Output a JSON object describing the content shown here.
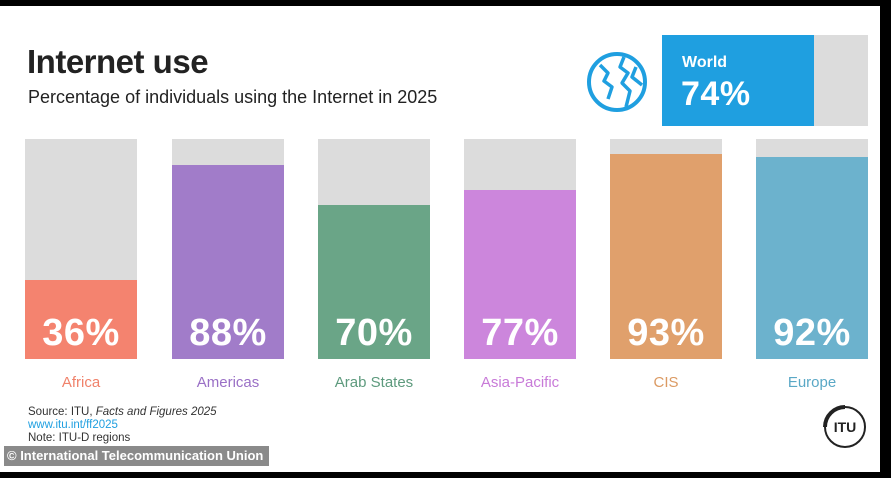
{
  "header": {
    "title": "Internet use",
    "subtitle": "Percentage of individuals using the Internet in 2025"
  },
  "world": {
    "label": "World",
    "value_label": "74%",
    "value": 74,
    "color": "#1f9fe0",
    "icon": "globe-icon"
  },
  "chart_data": {
    "type": "bar",
    "title": "Internet use",
    "subtitle": "Percentage of individuals using the Internet in 2025",
    "ylim": [
      0,
      100
    ],
    "grid": false,
    "categories": [
      "Africa",
      "Americas",
      "Arab States",
      "Asia-Pacific",
      "CIS",
      "Europe"
    ],
    "values": [
      36,
      88,
      70,
      77,
      93,
      92
    ],
    "value_labels": [
      "36%",
      "88%",
      "70%",
      "77%",
      "93%",
      "92%"
    ],
    "colors": [
      "#f4836f",
      "#a17cc9",
      "#6aa587",
      "#cc86dc",
      "#e0a06c",
      "#6cb2cd"
    ],
    "label_colors": [
      "#f0826b",
      "#9a70c6",
      "#5d9a7d",
      "#c87ad8",
      "#db9a63",
      "#5aa8c6"
    ],
    "track_color": "#dcdcdc"
  },
  "footer": {
    "source_prefix": "Source: ITU, ",
    "source_title": "Facts and Figures 2025",
    "url": "www.itu.int/ff2025",
    "note": "Note: ITU-D regions",
    "logo_text": "ITU",
    "logo_icon": "itu-logo-icon",
    "credit": "© International Telecommunication Union"
  }
}
